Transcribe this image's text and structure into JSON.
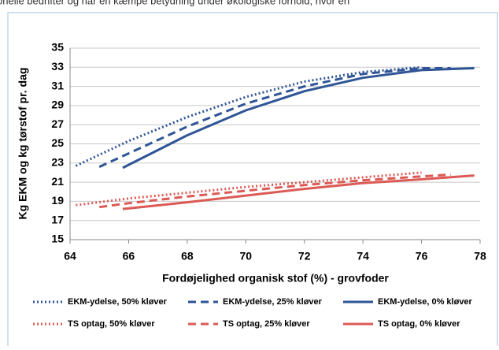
{
  "page_text": "onelle bedrifter og har en kæmpe betydning under økologiske forhold, hvor en",
  "chart_data": {
    "type": "line",
    "xlabel": "Fordøjelighed organisk stof  (%) - grovfoder",
    "ylabel": "Kg EKM og kg tørstof pr. dag",
    "xlim": [
      64,
      78
    ],
    "xticks": [
      64,
      66,
      68,
      70,
      72,
      74,
      76,
      78
    ],
    "ylim": [
      15,
      35
    ],
    "yticks": [
      15,
      17,
      19,
      21,
      23,
      25,
      27,
      29,
      31,
      33,
      35
    ],
    "grid": true,
    "legend": "bottom",
    "series": [
      {
        "name": "EKM-ydelse, 50% kløver",
        "color": "#2f5597",
        "style": "dotted",
        "x": [
          64.2,
          66,
          68,
          70,
          72,
          74,
          76
        ],
        "values": [
          22.7,
          25.3,
          27.8,
          29.9,
          31.5,
          32.5,
          33.0
        ]
      },
      {
        "name": "EKM-ydelse, 25% kløver",
        "color": "#2f5597",
        "style": "dashed",
        "x": [
          65,
          66,
          68,
          70,
          72,
          74,
          76,
          77
        ],
        "values": [
          22.6,
          24.0,
          26.8,
          29.2,
          31.0,
          32.3,
          32.9,
          32.9
        ]
      },
      {
        "name": "EKM-ydelse, 0% kløver",
        "color": "#2f5597",
        "style": "solid",
        "x": [
          65.8,
          68,
          70,
          72,
          74,
          76,
          77.8
        ],
        "values": [
          22.5,
          25.9,
          28.5,
          30.5,
          31.9,
          32.7,
          32.9
        ]
      },
      {
        "name": "TS optag, 50% kløver",
        "color": "#dc5a55",
        "style": "dotted",
        "x": [
          64.2,
          66,
          68,
          70,
          72,
          74,
          76
        ],
        "values": [
          18.6,
          19.3,
          19.9,
          20.5,
          21.0,
          21.5,
          22.0
        ]
      },
      {
        "name": "TS optag, 25% kløver",
        "color": "#dc5a55",
        "style": "dashed",
        "x": [
          65,
          66,
          68,
          70,
          72,
          74,
          76,
          77
        ],
        "values": [
          18.4,
          18.8,
          19.5,
          20.1,
          20.7,
          21.2,
          21.6,
          21.8
        ]
      },
      {
        "name": "TS optag, 0% kløver",
        "color": "#dc5a55",
        "style": "solid",
        "x": [
          65.8,
          68,
          70,
          72,
          74,
          76,
          77.8
        ],
        "values": [
          18.2,
          18.9,
          19.6,
          20.3,
          20.9,
          21.3,
          21.7
        ]
      }
    ]
  }
}
